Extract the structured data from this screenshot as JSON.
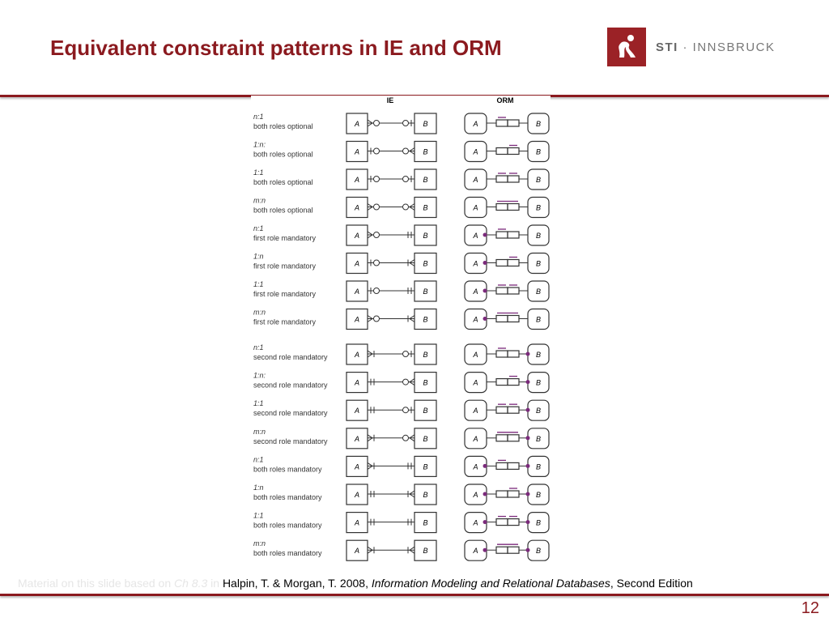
{
  "title": "Equivalent constraint patterns in IE and ORM",
  "logo": {
    "text_bold": "STI",
    "text_rest": " · INNSBRUCK"
  },
  "figure": {
    "col_ie": "IE",
    "col_orm": "ORM",
    "entity_a": "A",
    "entity_b": "B",
    "rows": [
      {
        "card": "n:1",
        "desc": "both roles optional",
        "left_many": true,
        "right_many": false,
        "first_mandatory": false,
        "second_mandatory": false
      },
      {
        "card": "1:n:",
        "desc": "both roles optional",
        "left_many": false,
        "right_many": true,
        "first_mandatory": false,
        "second_mandatory": false
      },
      {
        "card": "1:1",
        "desc": "both roles optional",
        "left_many": false,
        "right_many": false,
        "first_mandatory": false,
        "second_mandatory": false
      },
      {
        "card": "m:n",
        "desc": "both roles optional",
        "left_many": true,
        "right_many": true,
        "first_mandatory": false,
        "second_mandatory": false
      },
      {
        "card": "n:1",
        "desc": "first role mandatory",
        "left_many": true,
        "right_many": false,
        "first_mandatory": true,
        "second_mandatory": false
      },
      {
        "card": "1:n",
        "desc": "first role mandatory",
        "left_many": false,
        "right_many": true,
        "first_mandatory": true,
        "second_mandatory": false
      },
      {
        "card": "1:1",
        "desc": "first role mandatory",
        "left_many": false,
        "right_many": false,
        "first_mandatory": true,
        "second_mandatory": false
      },
      {
        "card": "m:n",
        "desc": "first role mandatory",
        "left_many": true,
        "right_many": true,
        "first_mandatory": true,
        "second_mandatory": false
      },
      {
        "card": "n:1",
        "desc": "second role mandatory",
        "left_many": true,
        "right_many": false,
        "first_mandatory": false,
        "second_mandatory": true
      },
      {
        "card": "1:n:",
        "desc": "second role mandatory",
        "left_many": false,
        "right_many": true,
        "first_mandatory": false,
        "second_mandatory": true
      },
      {
        "card": "1:1",
        "desc": "second role mandatory",
        "left_many": false,
        "right_many": false,
        "first_mandatory": false,
        "second_mandatory": true
      },
      {
        "card": "m:n",
        "desc": "second role mandatory",
        "left_many": true,
        "right_many": true,
        "first_mandatory": false,
        "second_mandatory": true
      },
      {
        "card": "n:1",
        "desc": "both roles mandatory",
        "left_many": true,
        "right_many": false,
        "first_mandatory": true,
        "second_mandatory": true
      },
      {
        "card": "1:n",
        "desc": "both roles mandatory",
        "left_many": false,
        "right_many": true,
        "first_mandatory": true,
        "second_mandatory": true
      },
      {
        "card": "1:1",
        "desc": "both roles mandatory",
        "left_many": false,
        "right_many": false,
        "first_mandatory": true,
        "second_mandatory": true
      },
      {
        "card": "m:n",
        "desc": "both roles mandatory",
        "left_many": true,
        "right_many": true,
        "first_mandatory": true,
        "second_mandatory": true
      }
    ]
  },
  "source": {
    "faint_prefix": "Material on this slide based on ",
    "faint_chapter": "Ch 8.3",
    "faint_in": " in ",
    "authors": "Halpin, T. & Morgan, T. 2008, ",
    "book": "Information Modeling and Relational Databases",
    "edition": ", Second Edition"
  },
  "page_number": "12",
  "colors": {
    "brand": "#8b1a1f",
    "orm_constraint": "#7b2a7b"
  }
}
